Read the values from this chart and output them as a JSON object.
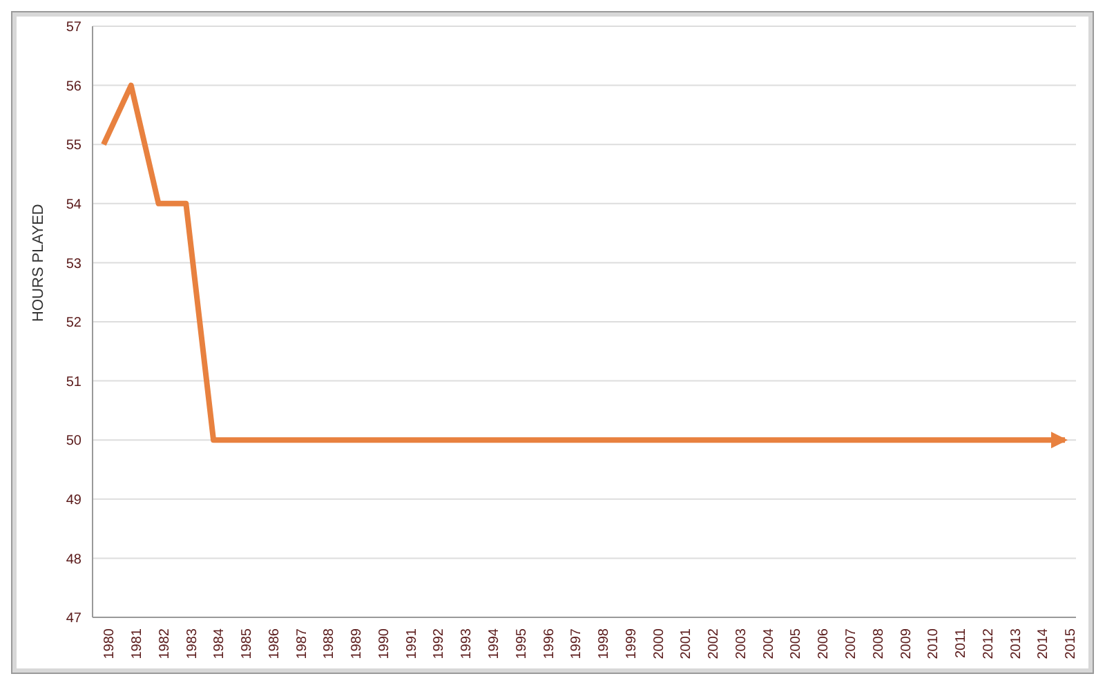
{
  "chart_data": {
    "type": "line",
    "ylabel": "HOURS PLAYED",
    "categories": [
      "1980",
      "1981",
      "1982",
      "1983",
      "1984",
      "1985",
      "1986",
      "1987",
      "1988",
      "1989",
      "1990",
      "1991",
      "1992",
      "1993",
      "1994",
      "1995",
      "1996",
      "1997",
      "1998",
      "1999",
      "2000",
      "2001",
      "2002",
      "2003",
      "2004",
      "2005",
      "2006",
      "2007",
      "2008",
      "2009",
      "2010",
      "2011",
      "2012",
      "2013",
      "2014",
      "2015"
    ],
    "series": [
      {
        "color": "#e8813f",
        "values": [
          55,
          56,
          54,
          54,
          50,
          50,
          50,
          50,
          50,
          50,
          50,
          50,
          50,
          50,
          50,
          50,
          50,
          50,
          50,
          50,
          50,
          50,
          50,
          50,
          50,
          50,
          50,
          50,
          50,
          50,
          50,
          50,
          50,
          50,
          50,
          50
        ]
      }
    ],
    "ylim": [
      47,
      57
    ],
    "yticks": [
      47,
      48,
      49,
      50,
      51,
      52,
      53,
      54,
      55,
      56,
      57
    ],
    "grid": "y",
    "marker": "none"
  }
}
